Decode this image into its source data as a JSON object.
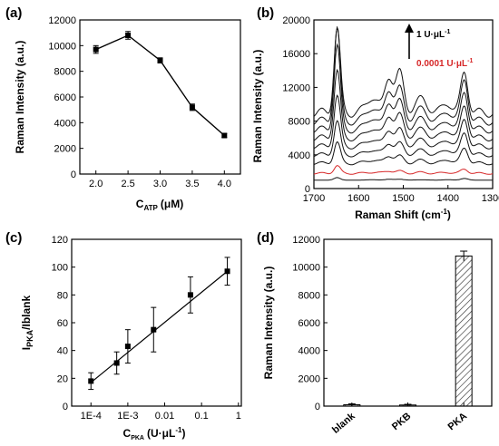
{
  "chart_data": [
    {
      "panel": "(a)",
      "type": "line",
      "xlabel": "C",
      "xlabel_sub": "ATP",
      "xlabel_unit": "(μM)",
      "ylabel": "Raman Intensity (a.u.)",
      "xlim": [
        1.75,
        4.25
      ],
      "ylim": [
        0,
        12000
      ],
      "xticks": [
        "2.0",
        "2.5",
        "3.0",
        "3.5",
        "4.0"
      ],
      "yticks": [
        "0",
        "2000",
        "4000",
        "6000",
        "8000",
        "10000",
        "12000"
      ],
      "x": [
        2.0,
        2.5,
        3.0,
        3.5,
        4.0
      ],
      "y": [
        9700,
        10800,
        8850,
        5200,
        3000
      ],
      "yerr": [
        300,
        300,
        200,
        250,
        150
      ]
    },
    {
      "panel": "(b)",
      "type": "line",
      "xlabel": "Raman Shift (cm",
      "xlabel_sup": "-1",
      "xlabel_close": ")",
      "ylabel": "Raman Intensity (a.u.)",
      "xlim": [
        1700,
        1300
      ],
      "ylim": [
        0,
        20000
      ],
      "xticks": [
        "1700",
        "1600",
        "1500",
        "1400",
        "1300"
      ],
      "yticks": [
        "0",
        "4000",
        "8000",
        "12000",
        "16000",
        "20000"
      ],
      "annotation_top": "1 U·μL",
      "annotation_top_sup": "-1",
      "annotation_bottom": "0.0001 U·μL",
      "annotation_bottom_sup": "-1",
      "highlight_color": "#d62728",
      "series": [
        {
          "baseline": 1000,
          "peak1648": 300,
          "peak1530": 100,
          "peak1510": 100,
          "peak1365": 200
        },
        {
          "baseline": 1800,
          "peak1648": 900,
          "peak1530": 300,
          "peak1510": 250,
          "peak1365": 500
        },
        {
          "baseline": 3000,
          "peak1648": 2500,
          "peak1530": 900,
          "peak1510": 800,
          "peak1365": 1800
        },
        {
          "baseline": 4000,
          "peak1648": 4000,
          "peak1530": 1400,
          "peak1510": 1300,
          "peak1365": 2600
        },
        {
          "baseline": 5000,
          "peak1648": 6000,
          "peak1530": 2000,
          "peak1510": 1900,
          "peak1365": 3200
        },
        {
          "baseline": 6000,
          "peak1648": 8000,
          "peak1530": 2700,
          "peak1510": 2600,
          "peak1365": 3800
        },
        {
          "baseline": 7000,
          "peak1648": 10000,
          "peak1530": 3300,
          "peak1510": 3200,
          "peak1365": 4400
        },
        {
          "baseline": 8000,
          "peak1648": 11000,
          "peak1530": 3800,
          "peak1510": 3700,
          "peak1365": 4900
        },
        {
          "baseline": 9000,
          "peak1648": 10000,
          "peak1530": 4300,
          "peak1510": 4600,
          "peak1365": 4800
        }
      ]
    },
    {
      "panel": "(c)",
      "type": "scatter",
      "xlabel": "C",
      "xlabel_sub": "PKA",
      "xlabel_unit": "(U·μL",
      "xlabel_sup": "-1",
      "xlabel_close": ")",
      "ylabel": "I",
      "ylabel_sub1": "PKA",
      "ylabel_mid": "/I",
      "ylabel_sub2": "blank",
      "xscale": "log",
      "xlim": [
        3e-05,
        1.2
      ],
      "ylim": [
        0,
        120
      ],
      "xticks": [
        "1E-4",
        "1E-3",
        "0.01",
        "0.1",
        "1"
      ],
      "xtick_values": [
        0.0001,
        0.001,
        0.01,
        0.1,
        1
      ],
      "yticks": [
        "0",
        "20",
        "40",
        "60",
        "80",
        "100",
        "120"
      ],
      "x": [
        0.0001,
        0.0005,
        0.001,
        0.005,
        0.05,
        0.5
      ],
      "y": [
        18,
        31,
        43,
        55,
        80,
        97
      ],
      "yerr": [
        6,
        8,
        12,
        16,
        13,
        10
      ],
      "fit": [
        [
          0.0001,
          17
        ],
        [
          0.5,
          97
        ]
      ]
    },
    {
      "panel": "(d)",
      "type": "bar",
      "ylabel": "Raman Intensity (a.u.)",
      "ylim": [
        0,
        12000
      ],
      "yticks": [
        "0",
        "2000",
        "4000",
        "6000",
        "8000",
        "10000",
        "12000"
      ],
      "categories": [
        "blank",
        "PKB",
        "PKA"
      ],
      "values": [
        100,
        80,
        10800
      ],
      "yerr": [
        60,
        50,
        350
      ]
    }
  ]
}
